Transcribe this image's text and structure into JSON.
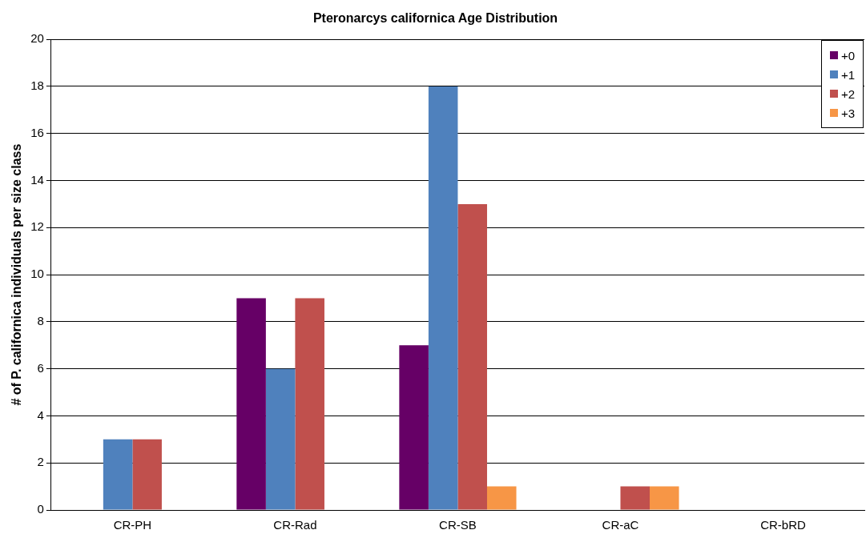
{
  "chart_data": {
    "type": "bar",
    "title": "Pteronarcys californica Age Distribution",
    "ylabel": "# of P. californica individuals per size class",
    "categories": [
      "CR-PH",
      "CR-Rad",
      "CR-SB",
      "CR-aC",
      "CR-bRD"
    ],
    "series": [
      {
        "name": "+0",
        "color": "#660066",
        "values": [
          0,
          9,
          7,
          0,
          0
        ]
      },
      {
        "name": "+1",
        "color": "#4f81bd",
        "values": [
          3,
          6,
          18,
          0,
          0
        ]
      },
      {
        "name": "+2",
        "color": "#c0504d",
        "values": [
          3,
          9,
          13,
          1,
          0
        ]
      },
      {
        "name": "+3",
        "color": "#f79646",
        "values": [
          0,
          0,
          1,
          1,
          0
        ]
      }
    ],
    "ylim": [
      0,
      20
    ],
    "yticks": [
      0,
      2,
      4,
      6,
      8,
      10,
      12,
      14,
      16,
      18,
      20
    ],
    "grid": "y",
    "legend": "top right"
  }
}
